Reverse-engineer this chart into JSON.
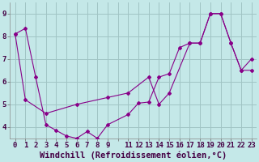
{
  "xlabel": "Windchill (Refroidissement éolien,°C)",
  "bg_color": "#c4e8e8",
  "grid_color": "#a0c4c4",
  "line_color": "#880088",
  "ylim": [
    3.5,
    9.5
  ],
  "xlim": [
    -0.5,
    23.5
  ],
  "y_ticks": [
    4,
    5,
    6,
    7,
    8,
    9
  ],
  "series1_x": [
    0,
    1,
    2,
    3,
    4,
    5,
    6,
    7,
    8,
    9,
    11,
    12,
    13,
    14,
    15,
    16,
    17,
    18,
    19,
    20,
    21,
    22,
    23
  ],
  "series1_y": [
    8.1,
    8.35,
    6.2,
    4.1,
    3.85,
    3.6,
    3.5,
    3.8,
    3.5,
    4.1,
    4.55,
    5.05,
    5.1,
    6.2,
    6.35,
    7.5,
    7.7,
    7.7,
    9.0,
    9.0,
    7.7,
    6.5,
    7.0
  ],
  "series2_x": [
    0,
    1,
    3,
    6,
    9,
    11,
    13,
    14,
    15,
    17,
    18,
    19,
    20,
    21,
    22,
    23
  ],
  "series2_y": [
    8.1,
    5.2,
    4.6,
    5.0,
    5.3,
    5.5,
    6.2,
    5.0,
    5.5,
    7.7,
    7.7,
    9.0,
    9.0,
    7.7,
    6.5,
    6.5
  ],
  "tick_fontsize": 6.5,
  "xlabel_fontsize": 7.5
}
